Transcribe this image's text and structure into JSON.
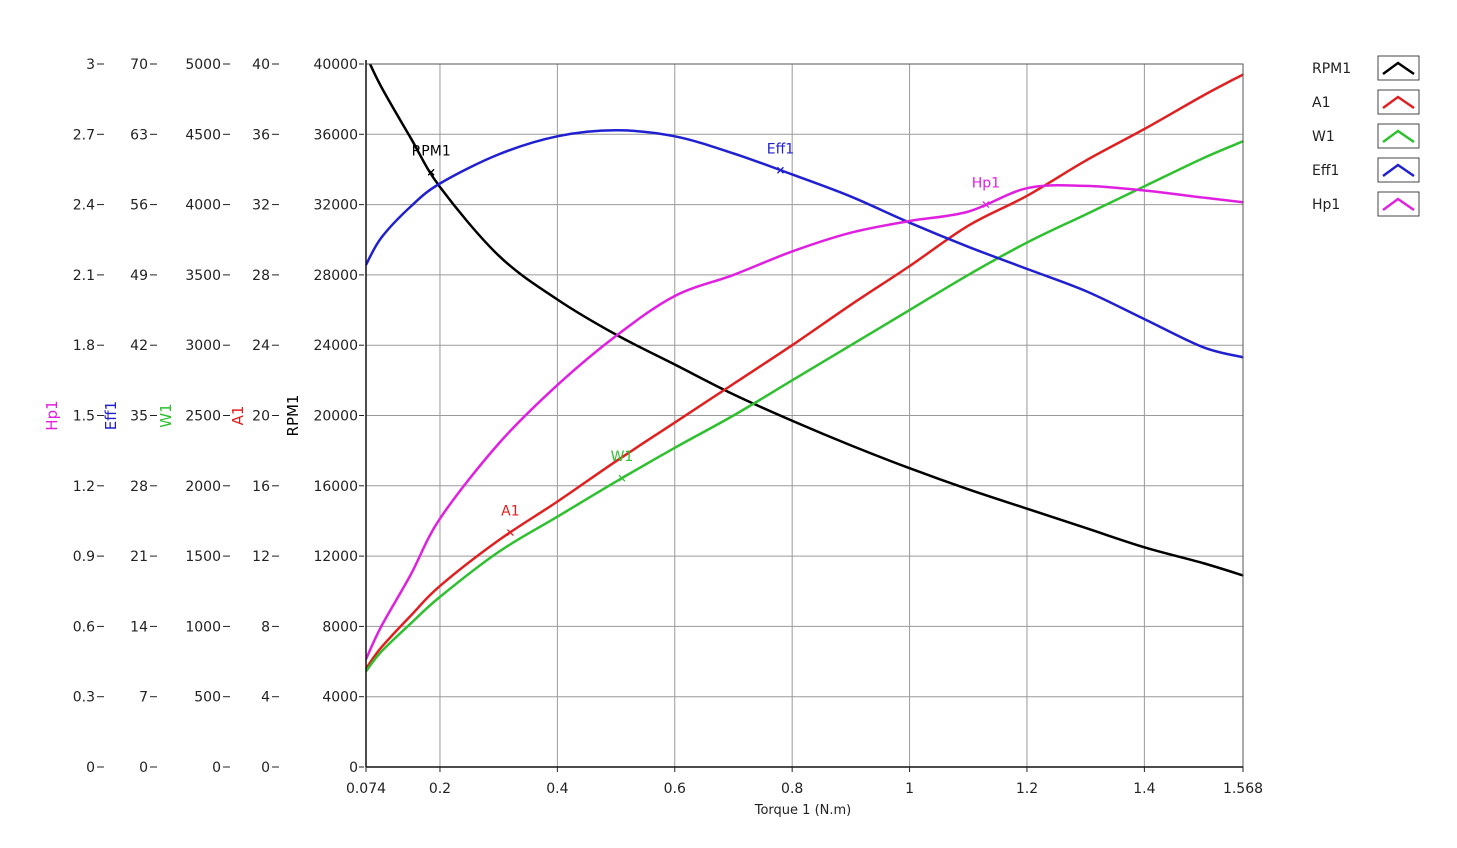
{
  "chart_data": {
    "type": "line",
    "xlabel": "Torque 1 (N.m)",
    "xlim": [
      0.074,
      1.568
    ],
    "x_ticks": [
      "0.074",
      "0.2",
      "0.4",
      "0.6",
      "0.8",
      "1",
      "1.2",
      "1.4",
      "1.568"
    ],
    "grid": true,
    "legend_position": "top-right",
    "axes": [
      {
        "name": "RPM1",
        "color": "#000000",
        "range": [
          0,
          40000
        ],
        "ticks": [
          "0",
          "4000",
          "8000",
          "12000",
          "16000",
          "20000",
          "24000",
          "28000",
          "32000",
          "36000",
          "40000"
        ]
      },
      {
        "name": "A1",
        "color": "#e02020",
        "range": [
          0,
          40
        ],
        "ticks": [
          "0",
          "4",
          "8",
          "12",
          "16",
          "20",
          "24",
          "28",
          "32",
          "36",
          "40"
        ]
      },
      {
        "name": "W1",
        "color": "#2ec02e",
        "range": [
          0,
          5000
        ],
        "ticks": [
          "0",
          "500",
          "1000",
          "1500",
          "2000",
          "2500",
          "3000",
          "3500",
          "4000",
          "4500",
          "5000"
        ]
      },
      {
        "name": "Eff1",
        "color": "#2020d0",
        "range": [
          0,
          70
        ],
        "ticks": [
          "0",
          "7",
          "14",
          "21",
          "28",
          "35",
          "42",
          "49",
          "56",
          "63",
          "70"
        ]
      },
      {
        "name": "Hp1",
        "color": "#e020e0",
        "range": [
          0,
          3
        ],
        "ticks": [
          "0",
          "0.3",
          "0.6",
          "0.9",
          "1.2",
          "1.5",
          "1.8",
          "2.1",
          "2.4",
          "2.7",
          "3"
        ]
      }
    ],
    "series": [
      {
        "name": "RPM1",
        "color": "#000000",
        "axis": 0,
        "x": [
          0.074,
          0.1,
          0.15,
          0.2,
          0.3,
          0.4,
          0.5,
          0.6,
          0.7,
          0.8,
          0.9,
          1.0,
          1.1,
          1.2,
          1.3,
          1.4,
          1.5,
          1.568
        ],
        "y": [
          40500,
          38700,
          35800,
          33000,
          29100,
          26600,
          24600,
          22900,
          21200,
          19700,
          18300,
          17000,
          15800,
          14700,
          13600,
          12500,
          11600,
          10900
        ],
        "marker": {
          "x": 0.185,
          "label": "RPM1"
        }
      },
      {
        "name": "A1",
        "color": "#e02020",
        "axis": 1,
        "x": [
          0.074,
          0.1,
          0.15,
          0.2,
          0.3,
          0.4,
          0.5,
          0.6,
          0.7,
          0.8,
          0.9,
          1.0,
          1.1,
          1.2,
          1.3,
          1.4,
          1.5,
          1.568
        ],
        "y": [
          5.6,
          6.8,
          8.6,
          10.3,
          12.9,
          15.1,
          17.4,
          19.6,
          21.8,
          24.0,
          26.3,
          28.5,
          30.8,
          32.5,
          34.5,
          36.3,
          38.2,
          39.4
        ],
        "marker": {
          "x": 0.32,
          "label": "A1"
        }
      },
      {
        "name": "W1",
        "color": "#2ec02e",
        "axis": 2,
        "x": [
          0.074,
          0.1,
          0.15,
          0.2,
          0.3,
          0.4,
          0.5,
          0.6,
          0.7,
          0.8,
          0.9,
          1.0,
          1.1,
          1.2,
          1.3,
          1.4,
          1.5,
          1.568
        ],
        "y": [
          680,
          820,
          1020,
          1210,
          1530,
          1780,
          2030,
          2270,
          2500,
          2750,
          3000,
          3250,
          3500,
          3730,
          3930,
          4130,
          4330,
          4450
        ],
        "marker": {
          "x": 0.51,
          "label": "W1"
        }
      },
      {
        "name": "Eff1",
        "color": "#2020d0",
        "axis": 3,
        "x": [
          0.074,
          0.1,
          0.15,
          0.2,
          0.3,
          0.4,
          0.5,
          0.6,
          0.7,
          0.8,
          0.9,
          1.0,
          1.1,
          1.2,
          1.3,
          1.4,
          1.5,
          1.568
        ],
        "y": [
          50.0,
          52.7,
          55.8,
          58.1,
          61.0,
          62.8,
          63.4,
          62.8,
          61.1,
          59.0,
          56.8,
          54.2,
          51.8,
          49.6,
          47.4,
          44.6,
          41.8,
          40.8
        ],
        "marker": {
          "x": 0.78,
          "label": "Eff1"
        }
      },
      {
        "name": "Hp1",
        "color": "#e020e0",
        "axis": 4,
        "x": [
          0.074,
          0.1,
          0.15,
          0.2,
          0.3,
          0.4,
          0.5,
          0.6,
          0.7,
          0.8,
          0.9,
          1.0,
          1.1,
          1.2,
          1.3,
          1.4,
          1.5,
          1.568
        ],
        "y": [
          0.46,
          0.6,
          0.82,
          1.06,
          1.38,
          1.63,
          1.84,
          2.01,
          2.1,
          2.2,
          2.28,
          2.33,
          2.37,
          2.47,
          2.48,
          2.46,
          2.43,
          2.41
        ],
        "marker": {
          "x": 1.13,
          "label": "Hp1"
        }
      }
    ]
  }
}
